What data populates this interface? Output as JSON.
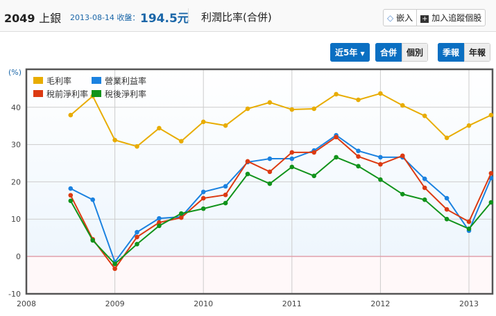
{
  "header": {
    "code": "2049",
    "name": "上銀",
    "date": "2013-08-14 收盤：",
    "price": "194.5元",
    "title": "利潤比率(合併)",
    "embed": "嵌入",
    "track": "加入追蹤個股"
  },
  "controls": {
    "period": "近5年",
    "consolidated": "合併",
    "individual": "個別",
    "quarterly": "季報",
    "annual": "年報"
  },
  "chart_data": {
    "type": "line",
    "ylabel": "(%)",
    "ylim": [
      -10,
      50
    ],
    "yticks": [
      -10,
      0,
      10,
      20,
      30,
      40
    ],
    "xticks": [
      "2008",
      "2009",
      "2010",
      "2011",
      "2012",
      "2013"
    ],
    "x": [
      2008.5,
      2008.75,
      2009,
      2009.25,
      2009.5,
      2009.75,
      2010,
      2010.25,
      2010.5,
      2010.75,
      2011,
      2011.25,
      2011.5,
      2011.75,
      2012,
      2012.25,
      2012.5,
      2012.75,
      2013,
      2013.25
    ],
    "grid": true,
    "legend": "top-left",
    "series": [
      {
        "name": "毛利率",
        "color": "#e8ac00",
        "values": [
          37.9,
          43,
          31.2,
          29.5,
          34.4,
          30.9,
          36.1,
          35.1,
          39.6,
          41.3,
          39.4,
          39.6,
          43.5,
          42.0,
          43.7,
          40.5,
          37.7,
          31.8,
          35.1,
          37.9
        ]
      },
      {
        "name": "營業利益率",
        "color": "#1b82e0",
        "values": [
          18.2,
          15.2,
          -1.5,
          6.5,
          10.2,
          10.6,
          17.3,
          18.8,
          25.3,
          26.2,
          26.2,
          28.4,
          32.5,
          28.3,
          26.6,
          26.6,
          20.8,
          15.6,
          6.9,
          21.0
        ]
      },
      {
        "name": "稅前淨利率",
        "color": "#dc3a12",
        "values": [
          16.4,
          4.6,
          -3.3,
          5.2,
          9.1,
          10.4,
          15.6,
          16.5,
          25.5,
          22.7,
          27.9,
          27.9,
          32.0,
          26.8,
          24.7,
          27.0,
          18.4,
          12.6,
          9.3,
          22.3
        ]
      },
      {
        "name": "稅後淨利率",
        "color": "#11931b",
        "values": [
          14.9,
          4.3,
          -2.0,
          3.3,
          8.2,
          11.5,
          12.8,
          14.3,
          22.1,
          19.5,
          24.0,
          21.6,
          26.6,
          24.2,
          20.6,
          16.7,
          15.2,
          10.0,
          7.4,
          14.5
        ]
      }
    ]
  }
}
